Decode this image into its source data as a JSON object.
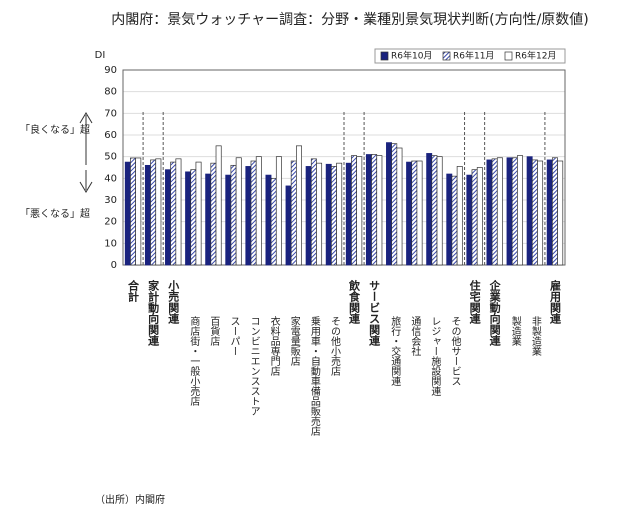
{
  "chart_data": {
    "type": "bar",
    "title": "内閣府：景気ウォッチャー調査：分野・業種別景気現状判断(方向性/原数値)",
    "y_label": "DI",
    "annotation_up": "「良くなる」超",
    "annotation_down": "「悪くなる」超",
    "source": "（出所）内閣府",
    "categories": [
      "合計",
      "家計動向関連",
      "小売関連",
      "商店街・一般小売店",
      "百貨店",
      "スーパー",
      "コンビニエンスストア",
      "衣料品専門店",
      "家電量販店",
      "乗用車・自動車備品販売店",
      "その他小売店",
      "飲食関連",
      "サービス関連",
      "旅行・交通関連",
      "通信会社",
      "レジャー施設関連",
      "その他サービス",
      "住宅関連",
      "企業動向関連",
      "製造業",
      "非製造業",
      "雇用関連"
    ],
    "series": [
      {
        "name": "R6年10月",
        "color": "#1a237e",
        "values": [
          47.5,
          46,
          44,
          43,
          42,
          41.5,
          45.5,
          41.5,
          36.5,
          45.5,
          46.5,
          47,
          51,
          56.5,
          47.5,
          51.5,
          42,
          41.5,
          48.5,
          49.5,
          50,
          48.5
        ]
      },
      {
        "name": "R6年11月",
        "color": "#3949ab",
        "values": [
          49.4,
          48.5,
          47.5,
          44,
          47,
          46,
          48,
          40,
          48,
          49,
          45.5,
          50.5,
          51,
          56,
          48,
          50.5,
          41,
          44,
          49,
          49.5,
          48.5,
          49.5
        ]
      },
      {
        "name": "R6年12月",
        "color": "#ffffff",
        "values": [
          49.4,
          49,
          49,
          47.5,
          55,
          49.5,
          50,
          50,
          55,
          47,
          47,
          50,
          50.5,
          54,
          48,
          50,
          45.5,
          45,
          49.5,
          50.5,
          48,
          48
        ]
      }
    ],
    "ylim": [
      0,
      90
    ],
    "yticks": [
      0,
      10,
      20,
      30,
      40,
      50,
      60,
      70,
      80,
      90
    ],
    "grid": true,
    "legend": "top-right"
  }
}
